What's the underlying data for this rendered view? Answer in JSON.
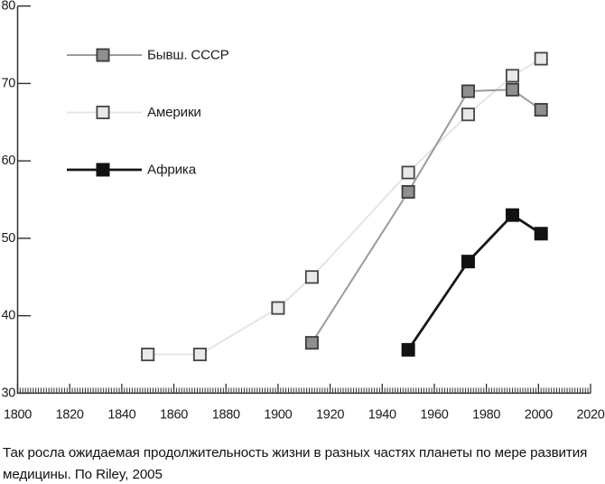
{
  "chart_data": {
    "type": "line",
    "title": "",
    "xlabel": "",
    "ylabel": "",
    "xlim": [
      1800,
      2020
    ],
    "ylim": [
      30,
      80
    ],
    "x_ticks": [
      1800,
      1820,
      1840,
      1860,
      1880,
      1900,
      1920,
      1940,
      1960,
      1980,
      2000,
      2020
    ],
    "x_minor_tick_step": 1,
    "y_ticks": [
      30,
      40,
      50,
      60,
      70,
      80
    ],
    "grid": false,
    "legend_position": "upper-left-inside",
    "series": [
      {
        "name": "Бывш. СССР",
        "z": 2,
        "x": [
          1913,
          1950,
          1973,
          1990,
          2001
        ],
        "values": [
          36.5,
          56,
          69,
          69.2,
          66.6
        ],
        "line_color": "#9b9b9b",
        "marker": "square",
        "marker_fill": "#8f8f8f",
        "marker_edge": "#3c3c3c",
        "line_width": 2
      },
      {
        "name": "Америки",
        "z": 1,
        "x": [
          1850,
          1870,
          1900,
          1913,
          1950,
          1973,
          1990,
          2001
        ],
        "values": [
          35,
          35,
          41,
          45,
          58.5,
          66,
          71,
          73.2
        ],
        "line_color": "#e2e2e2",
        "marker": "square",
        "marker_fill": "#e9e9e9",
        "marker_edge": "#454545",
        "line_width": 1.8
      },
      {
        "name": "Африка",
        "z": 3,
        "x": [
          1950,
          1973,
          1990,
          2001
        ],
        "values": [
          35.6,
          47,
          53,
          50.6
        ],
        "line_color": "#161616",
        "marker": "square",
        "marker_fill": "#121212",
        "marker_edge": "#121212",
        "line_width": 2.8
      }
    ],
    "axis_color": "#2f2f2f",
    "tick_label_color": "#1c1c1c"
  },
  "legend": {
    "items": [
      {
        "label": "Бывш. СССР"
      },
      {
        "label": "Америки"
      },
      {
        "label": "Африка"
      }
    ]
  },
  "caption": {
    "lines": [
      "Так росла ожидаемая продолжительность жизни в разных частях планеты по мере развития",
      "медицины. По Riley, 2005"
    ]
  }
}
